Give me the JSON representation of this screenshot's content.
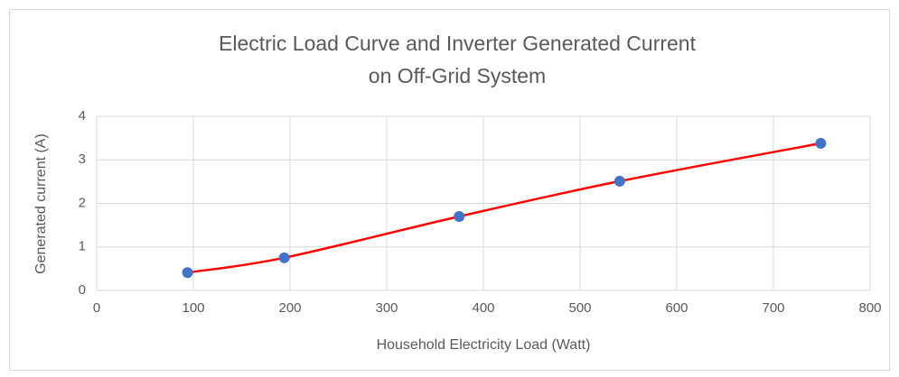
{
  "chart_data": {
    "type": "scatter",
    "title": [
      "Electric Load Curve and Inverter Generated Current",
      "on Off-Grid System"
    ],
    "x_label": "Household Electricity Load (Watt)",
    "y_label": "Generated current (A)",
    "x": [
      94,
      194,
      375,
      541,
      749
    ],
    "values": [
      0.41,
      0.75,
      1.7,
      2.51,
      3.38
    ],
    "line_color": "#ff0000",
    "marker_color": "#4472c4",
    "smooth": true,
    "xlim": [
      0,
      800
    ],
    "xticks": [
      0,
      100,
      200,
      300,
      400,
      500,
      600,
      700,
      800
    ],
    "ylim": [
      0,
      4
    ],
    "yticks": [
      0,
      1,
      2,
      3,
      4
    ],
    "grid": true
  }
}
